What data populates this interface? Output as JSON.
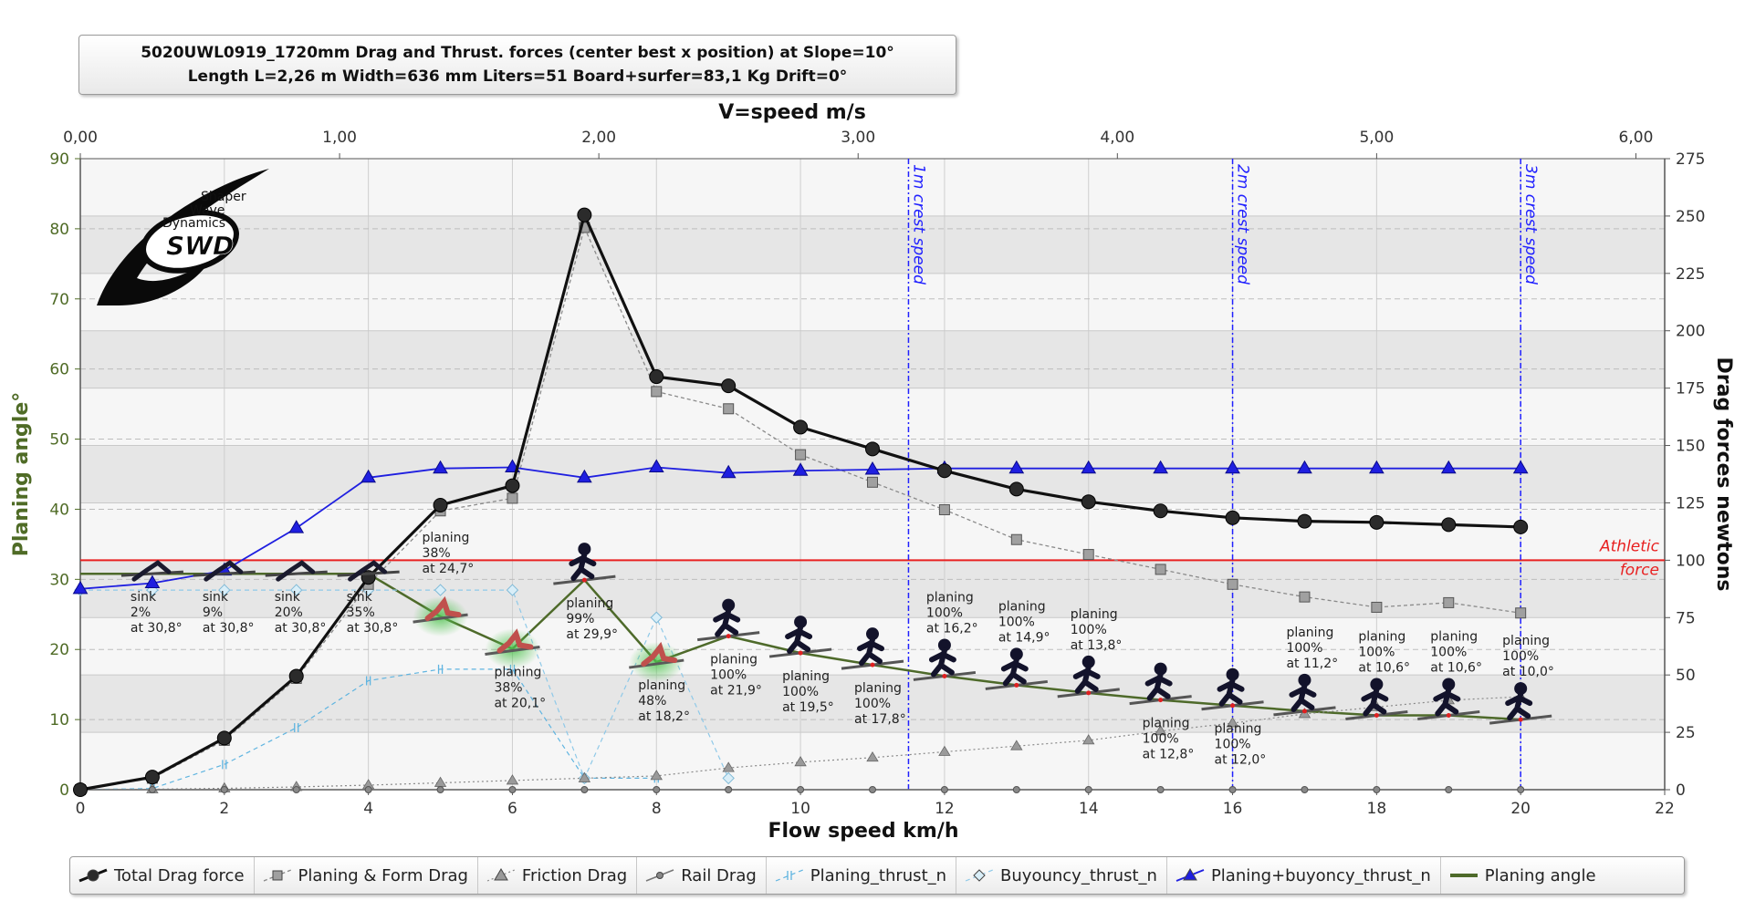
{
  "title": {
    "line1": "5020UWL0919_1720mm Drag and  Thrust. forces (center best x position) at  Slope=10°",
    "line2": "Length L=2,26 m Width=636 mm Liters=51 Board+surfer=83,1 Kg Drift=0°"
  },
  "colors": {
    "total_drag": "#111111",
    "planing_form": "#888888",
    "friction": "#888888",
    "rail": "#888888",
    "planing_thrust": "#5fb4e0",
    "buoyancy_thrust": "#8fc9e8",
    "planing_buoyancy": "#1f1fe0",
    "planing_angle": "#4e6a2a",
    "athletic": "#e82020",
    "crest": "#2020ff",
    "left_axis": "#4f6b26"
  },
  "chart_data": {
    "type": "line",
    "x_bottom": {
      "label": "Flow speed km/h",
      "range": [
        0,
        22
      ],
      "ticks": [
        "0",
        "2",
        "4",
        "6",
        "8",
        "10",
        "12",
        "14",
        "16",
        "18",
        "20",
        "22"
      ]
    },
    "x_top": {
      "label": "V=speed m/s",
      "range": [
        0,
        6.111
      ],
      "ticks": [
        "0,00",
        "1,00",
        "2,00",
        "3,00",
        "4,00",
        "5,00",
        "6,00"
      ]
    },
    "y_left": {
      "label": "Planing angle°",
      "range": [
        0,
        90
      ],
      "ticks": [
        "0",
        "10",
        "20",
        "30",
        "40",
        "50",
        "60",
        "70",
        "80",
        "90"
      ]
    },
    "y_right": {
      "label": "Drag forces newtons",
      "range": [
        0,
        275
      ],
      "ticks": [
        "0",
        "25",
        "50",
        "75",
        "100",
        "125",
        "150",
        "175",
        "200",
        "225",
        "250",
        "275"
      ]
    },
    "x": [
      0,
      1,
      2,
      3,
      4,
      5,
      6,
      7,
      8,
      9,
      10,
      11,
      12,
      13,
      14,
      15,
      16,
      17,
      18,
      19,
      20
    ],
    "series": [
      {
        "name": "Total Drag force",
        "axis": "right",
        "values": [
          0,
          5.5,
          22.5,
          49.5,
          92.5,
          124,
          132.5,
          250.5,
          180,
          176,
          158,
          148.5,
          139,
          131,
          125.5,
          121.5,
          118.5,
          117,
          116.5,
          115.5,
          114.5
        ]
      },
      {
        "name": "Planing & Form Drag",
        "axis": "right",
        "values": [
          0,
          5,
          21.5,
          48.5,
          89.5,
          121.5,
          127,
          245,
          173.5,
          166,
          146,
          134,
          122,
          109,
          102.5,
          96,
          89.5,
          84,
          79.5,
          81.5,
          77
        ]
      },
      {
        "name": "Friction Drag",
        "axis": "right",
        "values": [
          0,
          0.2,
          0.6,
          1.2,
          2,
          3,
          4,
          5,
          6,
          9.5,
          12,
          14,
          16.5,
          19,
          21.5,
          25.5,
          29,
          33,
          36,
          39,
          40.5
        ]
      },
      {
        "name": "Rail Drag",
        "axis": "right",
        "values": [
          0,
          0,
          0,
          0,
          0,
          0,
          0,
          0,
          0,
          0,
          0,
          0,
          0,
          0,
          0,
          0,
          0,
          0,
          0,
          0,
          0
        ]
      },
      {
        "name": "Planing_thrust_n",
        "axis": "right",
        "values": [
          0,
          0.5,
          11,
          27,
          47.5,
          52.5,
          52.5,
          5,
          5,
          null,
          null,
          null,
          null,
          null,
          null,
          null,
          null,
          null,
          null,
          null,
          null
        ]
      },
      {
        "name": "Buyouncy_thrust_n",
        "axis": "right",
        "values": [
          87,
          87,
          87,
          87,
          87,
          87,
          87,
          5,
          75,
          5,
          null,
          null,
          null,
          null,
          null,
          null,
          null,
          null,
          null,
          null,
          null
        ]
      },
      {
        "name": "Planing+buyoncy_thrust_n",
        "axis": "right",
        "values": [
          87.5,
          90,
          95.5,
          114,
          136,
          140,
          140.5,
          136,
          140.5,
          138,
          139,
          139.5,
          140,
          140,
          140,
          140,
          140,
          140,
          140,
          140,
          140
        ]
      },
      {
        "name": "Planing angle",
        "axis": "left",
        "values": [
          30.8,
          30.8,
          30.8,
          30.8,
          30.8,
          24.7,
          20.1,
          29.9,
          18.2,
          21.9,
          19.5,
          17.8,
          16.2,
          14.9,
          13.8,
          12.8,
          12,
          11.2,
          10.6,
          10.6,
          10
        ]
      }
    ],
    "athletic_force": {
      "value": 100,
      "label": [
        "Athletic",
        "force"
      ]
    },
    "crest_lines": [
      {
        "x": 11.5,
        "label": "1m crest speed"
      },
      {
        "x": 16,
        "label": "2m crest speed"
      },
      {
        "x": 20,
        "label": "3m crest speed"
      }
    ],
    "annotations": [
      {
        "x": 1,
        "lines": [
          "sink",
          "2%",
          "at 30,8°"
        ],
        "pos": "below"
      },
      {
        "x": 2,
        "lines": [
          "sink",
          "9%",
          "at 30,8°"
        ],
        "pos": "below"
      },
      {
        "x": 3,
        "lines": [
          "sink",
          "20%",
          "at 30,8°"
        ],
        "pos": "below"
      },
      {
        "x": 4,
        "lines": [
          "sink",
          "35%",
          "at 30,8°"
        ],
        "pos": "below"
      },
      {
        "x": 5,
        "lines": [
          "planing",
          "38%",
          "at 24,7°"
        ],
        "pos": "above"
      },
      {
        "x": 6,
        "lines": [
          "planing",
          "38%",
          "at 20,1°"
        ],
        "pos": "below"
      },
      {
        "x": 7,
        "lines": [
          "planing",
          "99%",
          "at 29,9°"
        ],
        "pos": "below"
      },
      {
        "x": 8,
        "lines": [
          "planing",
          "48%",
          "at 18,2°"
        ],
        "pos": "below"
      },
      {
        "x": 9,
        "lines": [
          "planing",
          "100%",
          "at 21,9°"
        ],
        "pos": "below"
      },
      {
        "x": 10,
        "lines": [
          "planing",
          "100%",
          "at 19,5°"
        ],
        "pos": "below"
      },
      {
        "x": 11,
        "lines": [
          "planing",
          "100%",
          "at 17,8°"
        ],
        "pos": "below"
      },
      {
        "x": 12,
        "lines": [
          "planing",
          "100%",
          "at 16,2°"
        ],
        "pos": "above"
      },
      {
        "x": 13,
        "lines": [
          "planing",
          "100%",
          "at 14,9°"
        ],
        "pos": "above"
      },
      {
        "x": 14,
        "lines": [
          "planing",
          "100%",
          "at 13,8°"
        ],
        "pos": "above"
      },
      {
        "x": 15,
        "lines": [
          "planing",
          "100%",
          "at 12,8°"
        ],
        "pos": "below"
      },
      {
        "x": 16,
        "lines": [
          "planing",
          "100%",
          "at 12,0°"
        ],
        "pos": "below"
      },
      {
        "x": 17,
        "lines": [
          "planing",
          "100%",
          "at 11,2°"
        ],
        "pos": "above"
      },
      {
        "x": 18,
        "lines": [
          "planing",
          "100%",
          "at 10,6°"
        ],
        "pos": "above"
      },
      {
        "x": 19,
        "lines": [
          "planing",
          "100%",
          "at 10,6°"
        ],
        "pos": "above"
      },
      {
        "x": 20,
        "lines": [
          "planing",
          "100%",
          "at 10,0°"
        ],
        "pos": "above"
      }
    ],
    "grid": true,
    "legend_position": "bottom"
  },
  "logo": {
    "lines": [
      "Shaper",
      "Wave",
      "Dynamics"
    ],
    "mark": "SWD"
  },
  "legend": [
    {
      "label": "Total Drag force",
      "icon": "circle-marker-icon"
    },
    {
      "label": "Planing & Form Drag",
      "icon": "square-marker-icon"
    },
    {
      "label": "Friction Drag",
      "icon": "triangle-marker-icon"
    },
    {
      "label": "Rail Drag",
      "icon": "diamond-marker-icon"
    },
    {
      "label": "Planing_thrust_n",
      "icon": "cross-marker-icon"
    },
    {
      "label": "Buyouncy_thrust_n",
      "icon": "diamond-marker-icon"
    },
    {
      "label": "Planing+buyoncy_thrust_n",
      "icon": "triangle-marker-icon"
    },
    {
      "label": "Planing angle",
      "icon": "line-icon"
    }
  ]
}
